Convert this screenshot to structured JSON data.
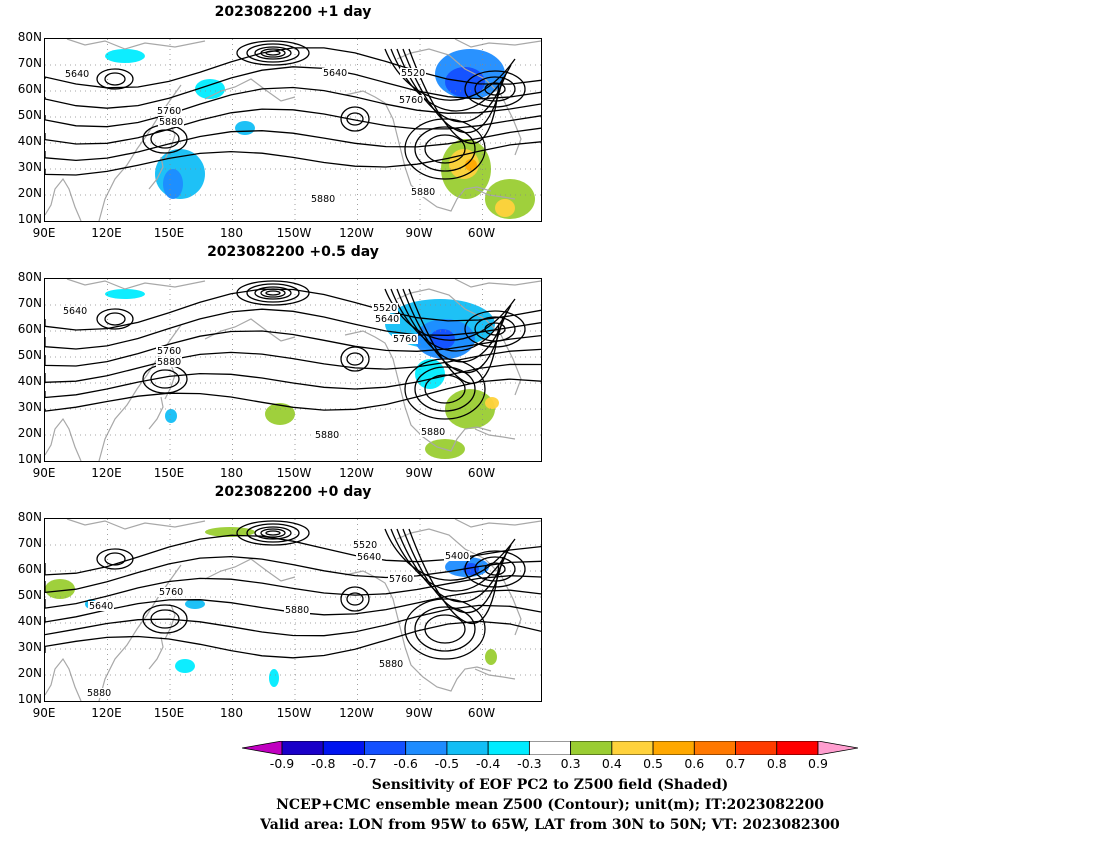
{
  "panels": [
    {
      "title": "2023082200  +1 day",
      "contour_labels": [
        "5640",
        "5640",
        "5520",
        "5760",
        "5760",
        "5880",
        "5880",
        "5880"
      ]
    },
    {
      "title": "2023082200  +0.5 day",
      "contour_labels": [
        "5640",
        "5520",
        "5640",
        "5760",
        "5760",
        "5880",
        "5880",
        "5880"
      ]
    },
    {
      "title": "2023082200  +0 day",
      "contour_labels": [
        "5520",
        "5640",
        "5400",
        "5760",
        "5760",
        "5640",
        "5880",
        "5880",
        "5880"
      ]
    }
  ],
  "lat_labels": [
    "80N",
    "70N",
    "60N",
    "50N",
    "40N",
    "30N",
    "20N",
    "10N"
  ],
  "lon_labels": [
    "90E",
    "120E",
    "150E",
    "180",
    "150W",
    "120W",
    "90W",
    "60W"
  ],
  "colorbar": {
    "ticks": [
      "-0.9",
      "-0.8",
      "-0.7",
      "-0.6",
      "-0.5",
      "-0.4",
      "-0.3",
      "0.3",
      "0.4",
      "0.5",
      "0.6",
      "0.7",
      "0.8",
      "0.9"
    ],
    "colors": [
      "#c000c0",
      "#1a00c8",
      "#0014f0",
      "#1450ff",
      "#1e8cff",
      "#12bef5",
      "#00ecff",
      "#ffffff",
      "#9acd32",
      "#ffd23c",
      "#ffa800",
      "#ff7800",
      "#ff3c00",
      "#ff0000",
      "#ff9ecf"
    ]
  },
  "caption": {
    "line1": "Sensitivity of EOF PC2 to Z500 field (Shaded)",
    "line2": "NCEP+CMC ensemble mean Z500 (Contour); unit(m); IT:2023082200",
    "line3": "Valid area: LON from 95W to 65W, LAT from 30N to 50N; VT: 2023082300"
  }
}
